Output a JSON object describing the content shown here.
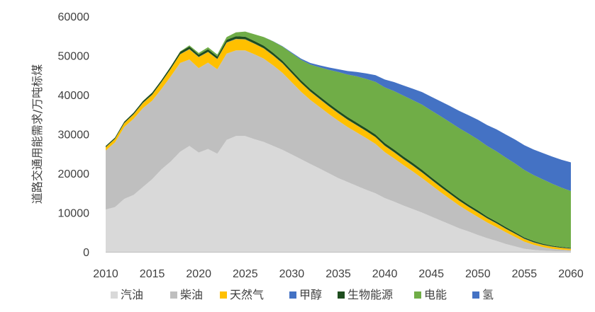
{
  "chart_data": {
    "type": "area",
    "stacked": true,
    "title": "",
    "xlabel": "",
    "ylabel": "道路交通用能需求/万吨标煤",
    "x": [
      2010,
      2011,
      2012,
      2013,
      2014,
      2015,
      2016,
      2017,
      2018,
      2019,
      2020,
      2021,
      2022,
      2023,
      2024,
      2025,
      2026,
      2027,
      2028,
      2029,
      2030,
      2031,
      2032,
      2033,
      2034,
      2035,
      2036,
      2037,
      2038,
      2039,
      2040,
      2041,
      2042,
      2043,
      2044,
      2045,
      2046,
      2047,
      2048,
      2049,
      2050,
      2051,
      2052,
      2053,
      2054,
      2055,
      2056,
      2057,
      2058,
      2059,
      2060
    ],
    "xlim": [
      2010,
      2060
    ],
    "xticks": [
      2010,
      2015,
      2020,
      2025,
      2030,
      2035,
      2040,
      2045,
      2050,
      2055,
      2060
    ],
    "ylim": [
      0,
      60000
    ],
    "yticks": [
      0,
      10000,
      20000,
      30000,
      40000,
      50000,
      60000
    ],
    "grid": false,
    "legend_position": "bottom",
    "series": [
      {
        "name": "汽油",
        "color": "#d9d9d9",
        "values": [
          10800,
          11400,
          13500,
          14500,
          16500,
          18500,
          21000,
          23000,
          25500,
          27000,
          25300,
          26200,
          25000,
          28500,
          29500,
          29500,
          28700,
          28000,
          27000,
          26000,
          24800,
          23600,
          22400,
          21200,
          20000,
          18800,
          17800,
          16800,
          15800,
          14900,
          13700,
          12800,
          11800,
          10900,
          10000,
          9000,
          8000,
          7000,
          6000,
          5200,
          4300,
          3500,
          2800,
          2000,
          1400,
          800,
          500,
          300,
          200,
          150,
          100
        ]
      },
      {
        "name": "柴油",
        "color": "#bfbfbf",
        "values": [
          15000,
          16500,
          18300,
          19400,
          20100,
          20000,
          20500,
          21700,
          22600,
          22000,
          21500,
          22000,
          21500,
          22000,
          21800,
          21800,
          21600,
          21200,
          20500,
          19600,
          18400,
          17200,
          16300,
          15700,
          15100,
          14600,
          14000,
          13600,
          13200,
          12600,
          11700,
          11000,
          10300,
          9600,
          8800,
          8000,
          7200,
          6500,
          5800,
          5100,
          4600,
          4000,
          3500,
          3000,
          2400,
          1800,
          1300,
          900,
          600,
          400,
          300
        ]
      },
      {
        "name": "天然气",
        "color": "#ffc000",
        "values": [
          800,
          850,
          950,
          1100,
          1300,
          1500,
          1700,
          1900,
          2200,
          2600,
          2800,
          2700,
          2600,
          2800,
          2900,
          2800,
          2700,
          2600,
          2500,
          2400,
          2300,
          2200,
          2100,
          2000,
          1950,
          1900,
          1850,
          1800,
          1750,
          1700,
          1600,
          1550,
          1500,
          1450,
          1400,
          1350,
          1300,
          1250,
          1200,
          1150,
          1100,
          1000,
          950,
          850,
          800,
          700,
          600,
          550,
          500,
          450,
          400
        ]
      },
      {
        "name": "甲醇",
        "color": "#4472c4",
        "values": [
          50,
          50,
          50,
          50,
          50,
          50,
          50,
          50,
          50,
          50,
          50,
          50,
          50,
          50,
          50,
          50,
          50,
          50,
          50,
          50,
          50,
          50,
          50,
          50,
          50,
          50,
          50,
          50,
          50,
          50,
          50,
          50,
          50,
          50,
          50,
          50,
          50,
          50,
          50,
          50,
          50,
          50,
          50,
          50,
          50,
          50,
          50,
          50,
          50,
          50,
          50
        ]
      },
      {
        "name": "生物能源",
        "color": "#1e4d1e",
        "values": [
          300,
          300,
          350,
          400,
          450,
          500,
          500,
          550,
          600,
          650,
          600,
          650,
          600,
          650,
          650,
          650,
          650,
          650,
          650,
          650,
          650,
          650,
          650,
          650,
          650,
          650,
          650,
          650,
          650,
          650,
          650,
          650,
          650,
          650,
          650,
          600,
          600,
          550,
          550,
          500,
          500,
          450,
          400,
          400,
          350,
          300,
          300,
          250,
          200,
          200,
          150
        ]
      },
      {
        "name": "电能",
        "color": "#70ad47",
        "values": [
          0,
          0,
          0,
          0,
          0,
          0,
          0,
          0,
          100,
          300,
          400,
          500,
          500,
          700,
          1000,
          1300,
          1700,
          2200,
          2900,
          3600,
          4400,
          5200,
          6200,
          7400,
          8600,
          9800,
          10800,
          11800,
          12600,
          13400,
          14200,
          14900,
          15500,
          16000,
          16600,
          17000,
          17400,
          17700,
          17900,
          18100,
          18100,
          18000,
          17900,
          17700,
          17500,
          17200,
          16800,
          16400,
          15800,
          15100,
          14500
        ]
      },
      {
        "name": "氢",
        "color": "#4472c4",
        "values": [
          0,
          0,
          0,
          0,
          0,
          0,
          0,
          0,
          0,
          0,
          0,
          0,
          0,
          0,
          0,
          0,
          0,
          0,
          50,
          100,
          200,
          300,
          400,
          500,
          600,
          700,
          900,
          1100,
          1400,
          1700,
          2000,
          2300,
          2600,
          2900,
          3200,
          3500,
          3800,
          4100,
          4400,
          4700,
          5000,
          5300,
          5600,
          5900,
          6100,
          6300,
          6500,
          6700,
          6900,
          7100,
          7300
        ]
      }
    ]
  }
}
